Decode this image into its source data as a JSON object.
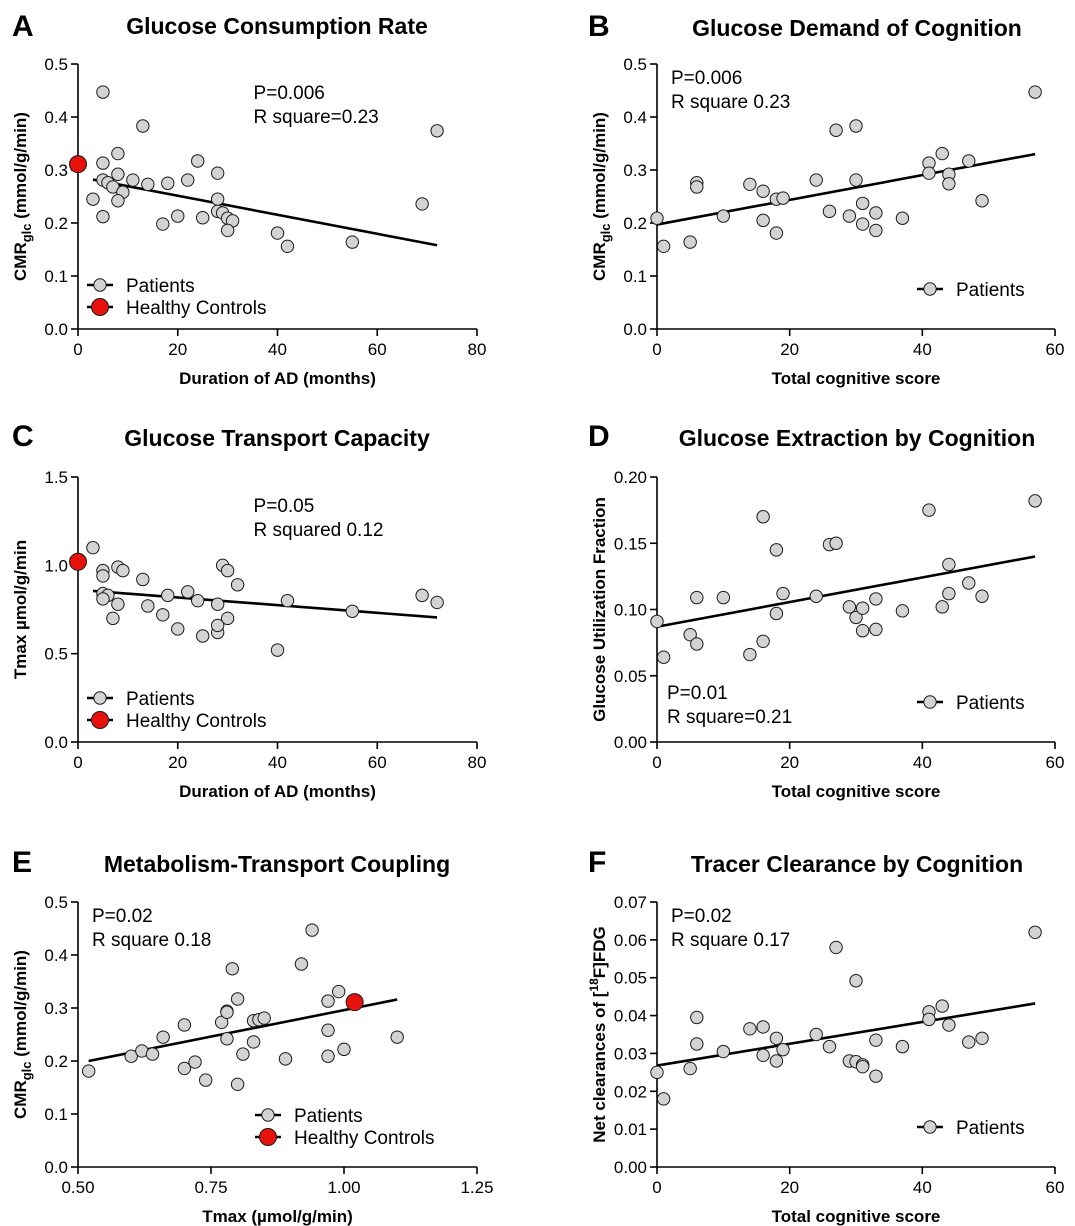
{
  "colors": {
    "patient_fill": "#d3d3d3",
    "control_fill": "#e8120c",
    "line": "#000000"
  },
  "chart_data": [
    {
      "type": "scatter",
      "letter": "A",
      "title": "Glucose Consumption Rate",
      "xlabel": "Duration of AD (months)",
      "ylabel": "CMR",
      "ylabel_sub": "glc",
      "ylabel_suffix": " (mmol/g/min)",
      "xlim": [
        0,
        80
      ],
      "ylim": [
        0,
        0.5
      ],
      "x_ticks": [
        0,
        20,
        40,
        60,
        80
      ],
      "x_tick_labels": [
        "0",
        "20",
        "40",
        "60",
        "80"
      ],
      "y_ticks": [
        0,
        0.1,
        0.2,
        0.3,
        0.4,
        0.5
      ],
      "y_tick_labels": [
        "0.0",
        "0.1",
        "0.2",
        "0.3",
        "0.4",
        "0.5"
      ],
      "stats": [
        "P=0.006",
        "R square=0.23"
      ],
      "stats_position": "top-center",
      "legend": [
        "Patients",
        "Healthy Controls"
      ],
      "legend_position": "bottom-left",
      "regression": {
        "x": [
          3,
          72
        ],
        "y": [
          0.282,
          0.158
        ]
      },
      "series": [
        {
          "name": "Patients",
          "points": [
            [
              5,
              0.447
            ],
            [
              13,
              0.383
            ],
            [
              72,
              0.374
            ],
            [
              8,
              0.331
            ],
            [
              5,
              0.313
            ],
            [
              24,
              0.317
            ],
            [
              28,
              0.294
            ],
            [
              3,
              0.245
            ],
            [
              8,
              0.292
            ],
            [
              5,
              0.281
            ],
            [
              6,
              0.276
            ],
            [
              7,
              0.268
            ],
            [
              9,
              0.258
            ],
            [
              11,
              0.281
            ],
            [
              14,
              0.273
            ],
            [
              18,
              0.275
            ],
            [
              22,
              0.281
            ],
            [
              8,
              0.242
            ],
            [
              28,
              0.245
            ],
            [
              28,
              0.222
            ],
            [
              29,
              0.219
            ],
            [
              30,
              0.209
            ],
            [
              5,
              0.212
            ],
            [
              20,
              0.213
            ],
            [
              25,
              0.21
            ],
            [
              17,
              0.198
            ],
            [
              31,
              0.204
            ],
            [
              30,
              0.186
            ],
            [
              40,
              0.181
            ],
            [
              42,
              0.156
            ],
            [
              55,
              0.164
            ],
            [
              69,
              0.236
            ]
          ]
        },
        {
          "name": "Healthy Controls",
          "points": [
            [
              0,
              0.311
            ]
          ]
        }
      ]
    },
    {
      "type": "scatter",
      "letter": "B",
      "title": "Glucose Demand of Cognition",
      "xlabel": "Total cognitive score",
      "ylabel": "CMR",
      "ylabel_sub": "glc",
      "ylabel_suffix": " (mmol/g/min)",
      "xlim": [
        0,
        60
      ],
      "ylim": [
        0,
        0.5
      ],
      "x_ticks": [
        0,
        20,
        40,
        60
      ],
      "x_tick_labels": [
        "0",
        "20",
        "40",
        "60"
      ],
      "y_ticks": [
        0,
        0.1,
        0.2,
        0.3,
        0.4,
        0.5
      ],
      "y_tick_labels": [
        "0.0",
        "0.1",
        "0.2",
        "0.3",
        "0.4",
        "0.5"
      ],
      "stats": [
        "P=0.006",
        "R square 0.23"
      ],
      "stats_position": "top-left",
      "legend": [
        "Patients"
      ],
      "legend_position": "bottom-right",
      "regression": {
        "x": [
          0,
          57
        ],
        "y": [
          0.197,
          0.33
        ]
      },
      "series": [
        {
          "name": "Patients",
          "points": [
            [
              0,
              0.209
            ],
            [
              1,
              0.156
            ],
            [
              5,
              0.164
            ],
            [
              6,
              0.276
            ],
            [
              6,
              0.268
            ],
            [
              10,
              0.213
            ],
            [
              14,
              0.273
            ],
            [
              16,
              0.26
            ],
            [
              16,
              0.205
            ],
            [
              18,
              0.245
            ],
            [
              18,
              0.181
            ],
            [
              19,
              0.247
            ],
            [
              24,
              0.281
            ],
            [
              26,
              0.222
            ],
            [
              27,
              0.375
            ],
            [
              29,
              0.213
            ],
            [
              30,
              0.383
            ],
            [
              30,
              0.281
            ],
            [
              31,
              0.198
            ],
            [
              31,
              0.237
            ],
            [
              33,
              0.219
            ],
            [
              33,
              0.186
            ],
            [
              37,
              0.209
            ],
            [
              41,
              0.313
            ],
            [
              41,
              0.294
            ],
            [
              43,
              0.331
            ],
            [
              44,
              0.292
            ],
            [
              44,
              0.274
            ],
            [
              47,
              0.317
            ],
            [
              49,
              0.242
            ],
            [
              57,
              0.447
            ]
          ]
        }
      ]
    },
    {
      "type": "scatter",
      "letter": "C",
      "title": "Glucose Transport Capacity",
      "xlabel": "Duration of AD (months)",
      "ylabel": "Tmax µmol/g/min",
      "ylabel_sub": "",
      "ylabel_suffix": "",
      "xlim": [
        0,
        80
      ],
      "ylim": [
        0,
        1.5
      ],
      "x_ticks": [
        0,
        20,
        40,
        60,
        80
      ],
      "x_tick_labels": [
        "0",
        "20",
        "40",
        "60",
        "80"
      ],
      "y_ticks": [
        0,
        0.5,
        1.0,
        1.5
      ],
      "y_tick_labels": [
        "0.0",
        "0.5",
        "1.0",
        "1.5"
      ],
      "stats": [
        "P=0.05",
        "R squared 0.12"
      ],
      "stats_position": "top-center",
      "legend": [
        "Patients",
        "Healthy Controls"
      ],
      "legend_position": "bottom-left",
      "regression": {
        "x": [
          3,
          72
        ],
        "y": [
          0.855,
          0.705
        ]
      },
      "series": [
        {
          "name": "Patients",
          "points": [
            [
              3,
              1.1
            ],
            [
              5,
              0.97
            ],
            [
              5,
              0.94
            ],
            [
              8,
              0.99
            ],
            [
              9,
              0.97
            ],
            [
              13,
              0.92
            ],
            [
              29,
              1.0
            ],
            [
              30,
              0.97
            ],
            [
              32,
              0.89
            ],
            [
              5,
              0.84
            ],
            [
              6,
              0.83
            ],
            [
              5,
              0.81
            ],
            [
              8,
              0.78
            ],
            [
              14,
              0.77
            ],
            [
              18,
              0.83
            ],
            [
              22,
              0.85
            ],
            [
              24,
              0.8
            ],
            [
              28,
              0.78
            ],
            [
              69,
              0.83
            ],
            [
              72,
              0.79
            ],
            [
              42,
              0.8
            ],
            [
              55,
              0.74
            ],
            [
              7,
              0.7
            ],
            [
              17,
              0.72
            ],
            [
              30,
              0.7
            ],
            [
              20,
              0.64
            ],
            [
              25,
              0.6
            ],
            [
              28,
              0.62
            ],
            [
              28,
              0.66
            ],
            [
              40,
              0.52
            ]
          ]
        },
        {
          "name": "Healthy Controls",
          "points": [
            [
              0,
              1.02
            ]
          ]
        }
      ]
    },
    {
      "type": "scatter",
      "letter": "D",
      "title": "Glucose Extraction by Cognition",
      "xlabel": "Total cognitive score",
      "ylabel": "Glucose Utilization Fraction",
      "ylabel_sub": "",
      "ylabel_suffix": "",
      "xlim": [
        0,
        60
      ],
      "ylim": [
        0,
        0.2
      ],
      "x_ticks": [
        0,
        20,
        40,
        60
      ],
      "x_tick_labels": [
        "0",
        "20",
        "40",
        "60"
      ],
      "y_ticks": [
        0,
        0.05,
        0.1,
        0.15,
        0.2
      ],
      "y_tick_labels": [
        "0.00",
        "0.05",
        "0.10",
        "0.15",
        "0.20"
      ],
      "stats": [
        "P=0.01",
        "R square=0.21"
      ],
      "stats_position": "bottom-left",
      "legend": [
        "Patients"
      ],
      "legend_position": "bottom-right",
      "regression": {
        "x": [
          0,
          57
        ],
        "y": [
          0.087,
          0.14
        ]
      },
      "series": [
        {
          "name": "Patients",
          "points": [
            [
              0,
              0.091
            ],
            [
              1,
              0.064
            ],
            [
              5,
              0.081
            ],
            [
              6,
              0.109
            ],
            [
              6,
              0.074
            ],
            [
              10,
              0.109
            ],
            [
              14,
              0.066
            ],
            [
              16,
              0.17
            ],
            [
              16,
              0.076
            ],
            [
              18,
              0.145
            ],
            [
              18,
              0.097
            ],
            [
              19,
              0.112
            ],
            [
              24,
              0.11
            ],
            [
              26,
              0.149
            ],
            [
              27,
              0.15
            ],
            [
              29,
              0.102
            ],
            [
              30,
              0.094
            ],
            [
              31,
              0.084
            ],
            [
              31,
              0.101
            ],
            [
              33,
              0.108
            ],
            [
              33,
              0.085
            ],
            [
              37,
              0.099
            ],
            [
              41,
              0.175
            ],
            [
              43,
              0.102
            ],
            [
              44,
              0.134
            ],
            [
              44,
              0.112
            ],
            [
              47,
              0.12
            ],
            [
              49,
              0.11
            ],
            [
              57,
              0.182
            ]
          ]
        }
      ]
    },
    {
      "type": "scatter",
      "letter": "E",
      "title": "Metabolism-Transport Coupling",
      "xlabel": "Tmax (µmol/g/min)",
      "ylabel": "CMR",
      "ylabel_sub": "glc",
      "ylabel_suffix": " (mmol/g/min)",
      "xlim": [
        0.5,
        1.25
      ],
      "ylim": [
        0,
        0.5
      ],
      "x_ticks": [
        0.5,
        0.75,
        1.0,
        1.25
      ],
      "x_tick_labels": [
        "0.50",
        "0.75",
        "1.00",
        "1.25"
      ],
      "y_ticks": [
        0,
        0.1,
        0.2,
        0.3,
        0.4,
        0.5
      ],
      "y_tick_labels": [
        "0.0",
        "0.1",
        "0.2",
        "0.3",
        "0.4",
        "0.5"
      ],
      "stats": [
        "P=0.02",
        "R square 0.18"
      ],
      "stats_position": "top-left",
      "legend": [
        "Patients",
        "Healthy Controls"
      ],
      "legend_position": "bottom-right",
      "regression": {
        "x": [
          0.52,
          1.1
        ],
        "y": [
          0.2,
          0.316
        ]
      },
      "series": [
        {
          "name": "Patients",
          "points": [
            [
              0.52,
              0.181
            ],
            [
              0.6,
              0.209
            ],
            [
              0.62,
              0.219
            ],
            [
              0.64,
              0.213
            ],
            [
              0.66,
              0.245
            ],
            [
              0.7,
              0.268
            ],
            [
              0.7,
              0.186
            ],
            [
              0.72,
              0.198
            ],
            [
              0.74,
              0.164
            ],
            [
              0.77,
              0.273
            ],
            [
              0.78,
              0.294
            ],
            [
              0.78,
              0.292
            ],
            [
              0.78,
              0.242
            ],
            [
              0.79,
              0.374
            ],
            [
              0.8,
              0.317
            ],
            [
              0.8,
              0.156
            ],
            [
              0.81,
              0.213
            ],
            [
              0.83,
              0.236
            ],
            [
              0.83,
              0.276
            ],
            [
              0.84,
              0.278
            ],
            [
              0.85,
              0.281
            ],
            [
              0.89,
              0.204
            ],
            [
              0.92,
              0.383
            ],
            [
              0.94,
              0.447
            ],
            [
              0.97,
              0.313
            ],
            [
              0.97,
              0.258
            ],
            [
              0.97,
              0.209
            ],
            [
              0.99,
              0.331
            ],
            [
              1.0,
              0.222
            ],
            [
              1.1,
              0.245
            ]
          ]
        },
        {
          "name": "Healthy Controls",
          "points": [
            [
              1.02,
              0.311
            ]
          ]
        }
      ]
    },
    {
      "type": "scatter",
      "letter": "F",
      "title": "Tracer Clearance by Cognition",
      "xlabel": "Total cognitive score",
      "ylabel": "Net clearances of [",
      "ylabel_sup": "18",
      "ylabel_suffix": "F]FDG",
      "xlim": [
        0,
        60
      ],
      "ylim": [
        0,
        0.07
      ],
      "x_ticks": [
        0,
        20,
        40,
        60
      ],
      "x_tick_labels": [
        "0",
        "20",
        "40",
        "60"
      ],
      "y_ticks": [
        0,
        0.01,
        0.02,
        0.03,
        0.04,
        0.05,
        0.06,
        0.07
      ],
      "y_tick_labels": [
        "0.00",
        "0.01",
        "0.02",
        "0.03",
        "0.04",
        "0.05",
        "0.06",
        "0.07"
      ],
      "stats": [
        "P=0.02",
        "R square 0.17"
      ],
      "stats_position": "top-left",
      "legend": [
        "Patients"
      ],
      "legend_position": "bottom-right",
      "regression": {
        "x": [
          0,
          57
        ],
        "y": [
          0.0268,
          0.0432
        ]
      },
      "series": [
        {
          "name": "Patients",
          "points": [
            [
              0,
              0.025
            ],
            [
              1,
              0.018
            ],
            [
              5,
              0.026
            ],
            [
              6,
              0.0395
            ],
            [
              6,
              0.0325
            ],
            [
              10,
              0.0305
            ],
            [
              14,
              0.0365
            ],
            [
              16,
              0.037
            ],
            [
              16,
              0.0295
            ],
            [
              18,
              0.034
            ],
            [
              18,
              0.028
            ],
            [
              19,
              0.031
            ],
            [
              24,
              0.035
            ],
            [
              26,
              0.0318
            ],
            [
              27,
              0.058
            ],
            [
              29,
              0.028
            ],
            [
              30,
              0.0492
            ],
            [
              30,
              0.0278
            ],
            [
              31,
              0.027
            ],
            [
              31,
              0.0265
            ],
            [
              33,
              0.0335
            ],
            [
              33,
              0.024
            ],
            [
              37,
              0.0318
            ],
            [
              41,
              0.041
            ],
            [
              41,
              0.039
            ],
            [
              43,
              0.0425
            ],
            [
              44,
              0.0375
            ],
            [
              47,
              0.033
            ],
            [
              49,
              0.034
            ],
            [
              57,
              0.062
            ]
          ]
        }
      ]
    }
  ]
}
